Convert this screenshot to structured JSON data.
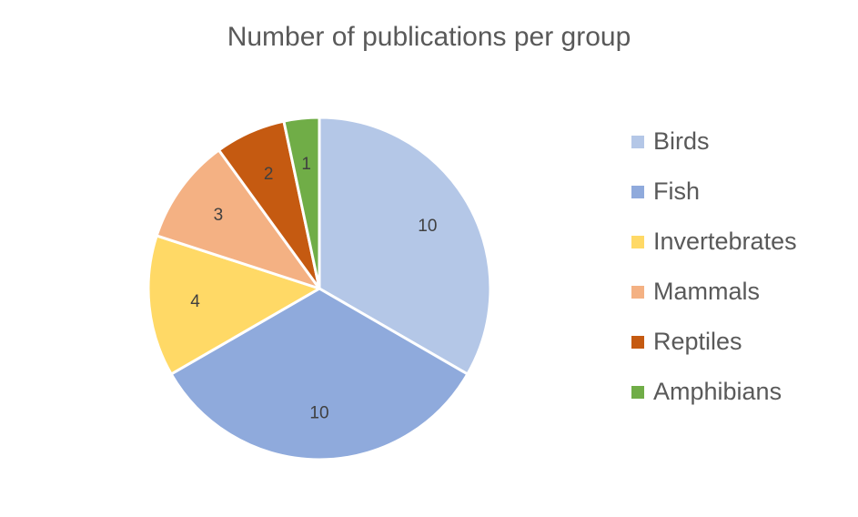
{
  "chart_data": {
    "type": "pie",
    "title": "Number of publications per group",
    "categories": [
      "Birds",
      "Fish",
      "Invertebrates",
      "Mammals",
      "Reptiles",
      "Amphibians"
    ],
    "values": [
      10,
      10,
      4,
      3,
      2,
      1
    ],
    "colors": [
      "#b4c7e7",
      "#8faadc",
      "#ffd966",
      "#f4b183",
      "#c55a11",
      "#70ad47"
    ],
    "data_labels": [
      "10",
      "10",
      "4",
      "3",
      "2",
      "1"
    ],
    "start_angle": "12 o'clock",
    "direction": "clockwise",
    "legend_position": "right"
  }
}
